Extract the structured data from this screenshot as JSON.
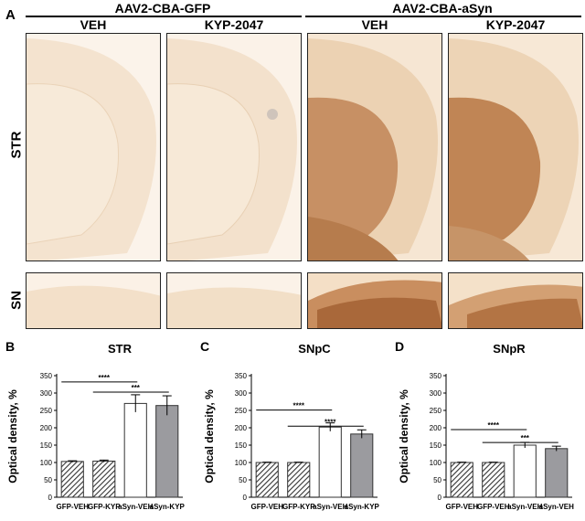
{
  "figure": {
    "panel_a": "A",
    "groups": [
      "AAV2-CBA-GFP",
      "AAV2-CBA-aSyn"
    ],
    "columns": [
      "VEH",
      "KYP-2047",
      "VEH",
      "KYP-2047"
    ],
    "rows": [
      "STR",
      "SN"
    ],
    "colors": {
      "gfp_tissue": "#f3e1c9",
      "syn_tissue_light": "#e6c59f",
      "syn_tissue_dark": "#c08a55"
    }
  },
  "chart_data": [
    {
      "panel": "B",
      "type": "bar",
      "title": "STR",
      "ylabel": "Optical density, %",
      "ylim": [
        0,
        350
      ],
      "yticks": [
        0,
        50,
        100,
        150,
        200,
        250,
        300,
        350
      ],
      "categories": [
        "GFP-VEH",
        "GFP-KYP",
        "aSyn-VEH",
        "aSyn-KYP"
      ],
      "values": [
        103,
        104,
        270,
        264
      ],
      "errors": [
        2,
        3,
        25,
        28
      ],
      "significance": [
        {
          "label": "****",
          "from": 0,
          "to": 2
        },
        {
          "label": "***",
          "from": 1,
          "to": 3
        }
      ]
    },
    {
      "panel": "C",
      "type": "bar",
      "title": "SNpC",
      "ylabel": "Optical density, %",
      "ylim": [
        0,
        350
      ],
      "yticks": [
        0,
        50,
        100,
        150,
        200,
        250,
        300,
        350
      ],
      "categories": [
        "GFP-VEH",
        "GFP-KYP",
        "aSyn-VEH",
        "aSyn-KYP"
      ],
      "values": [
        100,
        100,
        202,
        182
      ],
      "errors": [
        1,
        1,
        12,
        12
      ],
      "significance": [
        {
          "label": "****",
          "from": 0,
          "to": 2
        },
        {
          "label": "****",
          "from": 1,
          "to": 3
        }
      ]
    },
    {
      "panel": "D",
      "type": "bar",
      "title": "SNpR",
      "ylabel": "Optical density, %",
      "ylim": [
        0,
        350
      ],
      "yticks": [
        0,
        50,
        100,
        150,
        200,
        250,
        300,
        350
      ],
      "categories": [
        "GFP-VEH",
        "GFP-VEH",
        "aSyn-VEH",
        "aSyn-VEH"
      ],
      "values": [
        100,
        100,
        150,
        140
      ],
      "errors": [
        1,
        1,
        8,
        7
      ],
      "significance": [
        {
          "label": "****",
          "from": 0,
          "to": 2
        },
        {
          "label": "***",
          "from": 1,
          "to": 3
        }
      ]
    }
  ]
}
